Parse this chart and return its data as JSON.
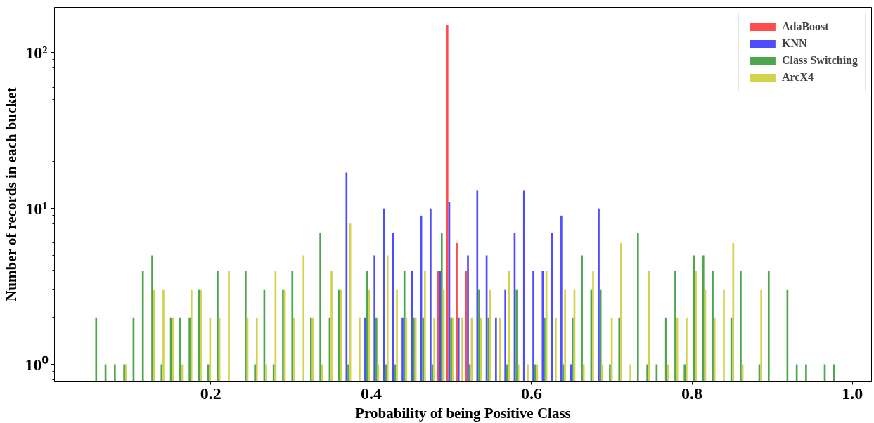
{
  "chart_data": {
    "type": "histogram",
    "xlabel": "Probability of being Positive Class",
    "ylabel": "Number of records in each bucket",
    "bins": [
      0.05,
      0.06165,
      0.0733,
      0.08495,
      0.0966,
      0.10825,
      0.1199,
      0.13155,
      0.1432,
      0.15485,
      0.1665,
      0.17815,
      0.1898,
      0.20145,
      0.2131,
      0.22475,
      0.2364,
      0.24805,
      0.2597,
      0.27135,
      0.283,
      0.29465,
      0.3063,
      0.31795,
      0.3296,
      0.34125,
      0.3529,
      0.36455,
      0.3762,
      0.38785,
      0.3995,
      0.41115,
      0.4228,
      0.43445,
      0.4461,
      0.45775,
      0.4694,
      0.48105,
      0.4927,
      0.50435,
      0.516,
      0.52765,
      0.5393,
      0.55095,
      0.5626,
      0.57425,
      0.5859,
      0.59755,
      0.6092,
      0.62085,
      0.6325,
      0.64415,
      0.6558,
      0.66745,
      0.6791,
      0.69075,
      0.7024,
      0.71405,
      0.7257,
      0.73735,
      0.749,
      0.76065,
      0.7723,
      0.78395,
      0.7956,
      0.80725,
      0.8189,
      0.83055,
      0.8422,
      0.85385,
      0.8655,
      0.87715,
      0.8888,
      0.90045,
      0.9121,
      0.92375,
      0.9354,
      0.94705,
      0.9587,
      0.97035,
      0.982
    ],
    "series": [
      {
        "name": "AdaBoost",
        "color": "#ff4d4d",
        "values": [
          null,
          null,
          null,
          null,
          null,
          null,
          null,
          null,
          null,
          null,
          null,
          null,
          null,
          null,
          null,
          null,
          null,
          null,
          null,
          null,
          null,
          null,
          null,
          null,
          null,
          null,
          null,
          null,
          null,
          null,
          null,
          null,
          null,
          null,
          null,
          null,
          null,
          4,
          150,
          6,
          4,
          null,
          null,
          null,
          null,
          null,
          null,
          null,
          null,
          null,
          null,
          null,
          null,
          null,
          null,
          null,
          null,
          null,
          null,
          null,
          null,
          null,
          null,
          null,
          null,
          null,
          null,
          null,
          null,
          null,
          null,
          null,
          null,
          null,
          null,
          null,
          null,
          null,
          null,
          null
        ]
      },
      {
        "name": "KNN",
        "color": "#4d4dff",
        "values": [
          null,
          null,
          null,
          null,
          null,
          null,
          null,
          null,
          null,
          null,
          null,
          null,
          null,
          null,
          null,
          null,
          null,
          null,
          null,
          null,
          null,
          null,
          null,
          null,
          null,
          null,
          null,
          17,
          null,
          2,
          5,
          10,
          7,
          2,
          4,
          9,
          10,
          4,
          11,
          2,
          5,
          13,
          5,
          2,
          3,
          7,
          13,
          4,
          4,
          7,
          9,
          1,
          null,
          null,
          10,
          null,
          null,
          null,
          null,
          null,
          null,
          null,
          null,
          null,
          null,
          null,
          null,
          null,
          null,
          null,
          null,
          null,
          null,
          null,
          null,
          null,
          null,
          null,
          null,
          null
        ]
      },
      {
        "name": "Class Switching",
        "color": "#4da64d",
        "values": [
          2,
          1,
          1,
          1,
          2,
          4,
          5,
          1,
          2,
          2,
          2,
          3,
          1,
          4,
          null,
          null,
          4,
          1,
          3,
          1,
          3,
          4,
          null,
          2,
          7,
          2,
          3,
          1,
          null,
          4,
          2,
          1,
          1,
          4,
          2,
          2,
          1,
          7,
          2,
          null,
          1,
          3,
          2,
          null,
          1,
          3,
          null,
          1,
          2,
          null,
          1,
          2,
          5,
          3,
          3,
          1,
          2,
          null,
          7,
          1,
          1,
          2,
          4,
          1,
          5,
          5,
          4,
          null,
          2,
          4,
          null,
          1,
          4,
          null,
          3,
          1,
          1,
          null,
          1,
          1
        ]
      },
      {
        "name": "ArcX4",
        "color": "#d2d24d",
        "values": [
          null,
          null,
          null,
          1,
          null,
          null,
          3,
          3,
          2,
          1,
          3,
          3,
          2,
          2,
          4,
          null,
          2,
          2,
          1,
          4,
          3,
          2,
          5,
          2,
          1,
          4,
          3,
          8,
          2,
          3,
          1,
          5,
          3,
          2,
          2,
          4,
          2,
          3,
          2,
          2,
          2,
          2,
          3,
          2,
          4,
          1,
          1,
          1,
          4,
          2,
          3,
          3,
          1,
          4,
          1,
          2,
          6,
          1,
          null,
          4,
          null,
          1,
          2,
          2,
          4,
          3,
          2,
          3,
          6,
          1,
          null,
          3,
          null,
          null,
          null,
          null,
          null,
          null,
          null,
          null
        ]
      }
    ],
    "log": "y",
    "xlim": [
      0.005,
      1.024
    ],
    "ylim": [
      0.78,
      195
    ],
    "xticks": [
      0.2,
      0.4,
      0.6,
      0.8,
      {
        "value": 1.0,
        "label": "1.0"
      }
    ],
    "yticks": [
      {
        "value": 1,
        "label": "10⁰"
      },
      {
        "value": 10,
        "label": "10¹"
      },
      {
        "value": 100,
        "label": "10²"
      }
    ],
    "legend": "top right",
    "grid": false
  }
}
